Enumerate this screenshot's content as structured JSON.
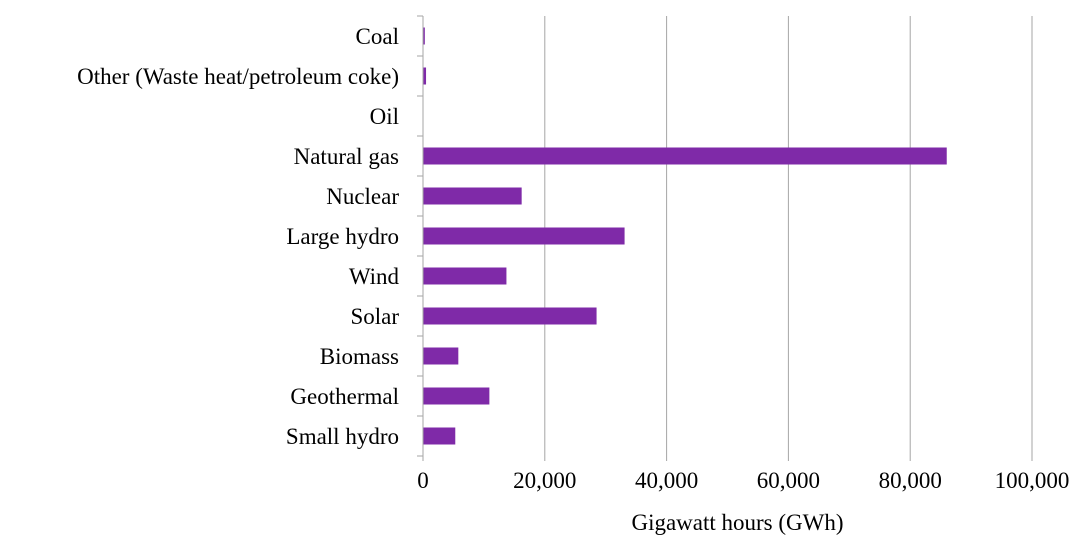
{
  "chart_data": {
    "type": "bar",
    "orientation": "horizontal",
    "categories": [
      "Coal",
      "Other (Waste heat/petroleum coke)",
      "Oil",
      "Natural gas",
      "Nuclear",
      "Large hydro",
      "Wind",
      "Solar",
      "Biomass",
      "Geothermal",
      "Small hydro"
    ],
    "values": [
      300,
      500,
      40,
      86000,
      16200,
      33100,
      13700,
      28500,
      5800,
      10900,
      5300
    ],
    "xlabel": "Gigawatt hours (GWh)",
    "ylabel": "",
    "xlim": [
      0,
      100000
    ],
    "xticks": [
      0,
      20000,
      40000,
      60000,
      80000,
      100000
    ],
    "xtick_labels": [
      "0",
      "20,000",
      "40,000",
      "60,000",
      "80,000",
      "100,000"
    ],
    "grid": "vertical",
    "legend": "none",
    "bar_color": "#7F2AA8",
    "grid_color": "#A6A6A6",
    "axis_color": "#A6A6A6"
  }
}
